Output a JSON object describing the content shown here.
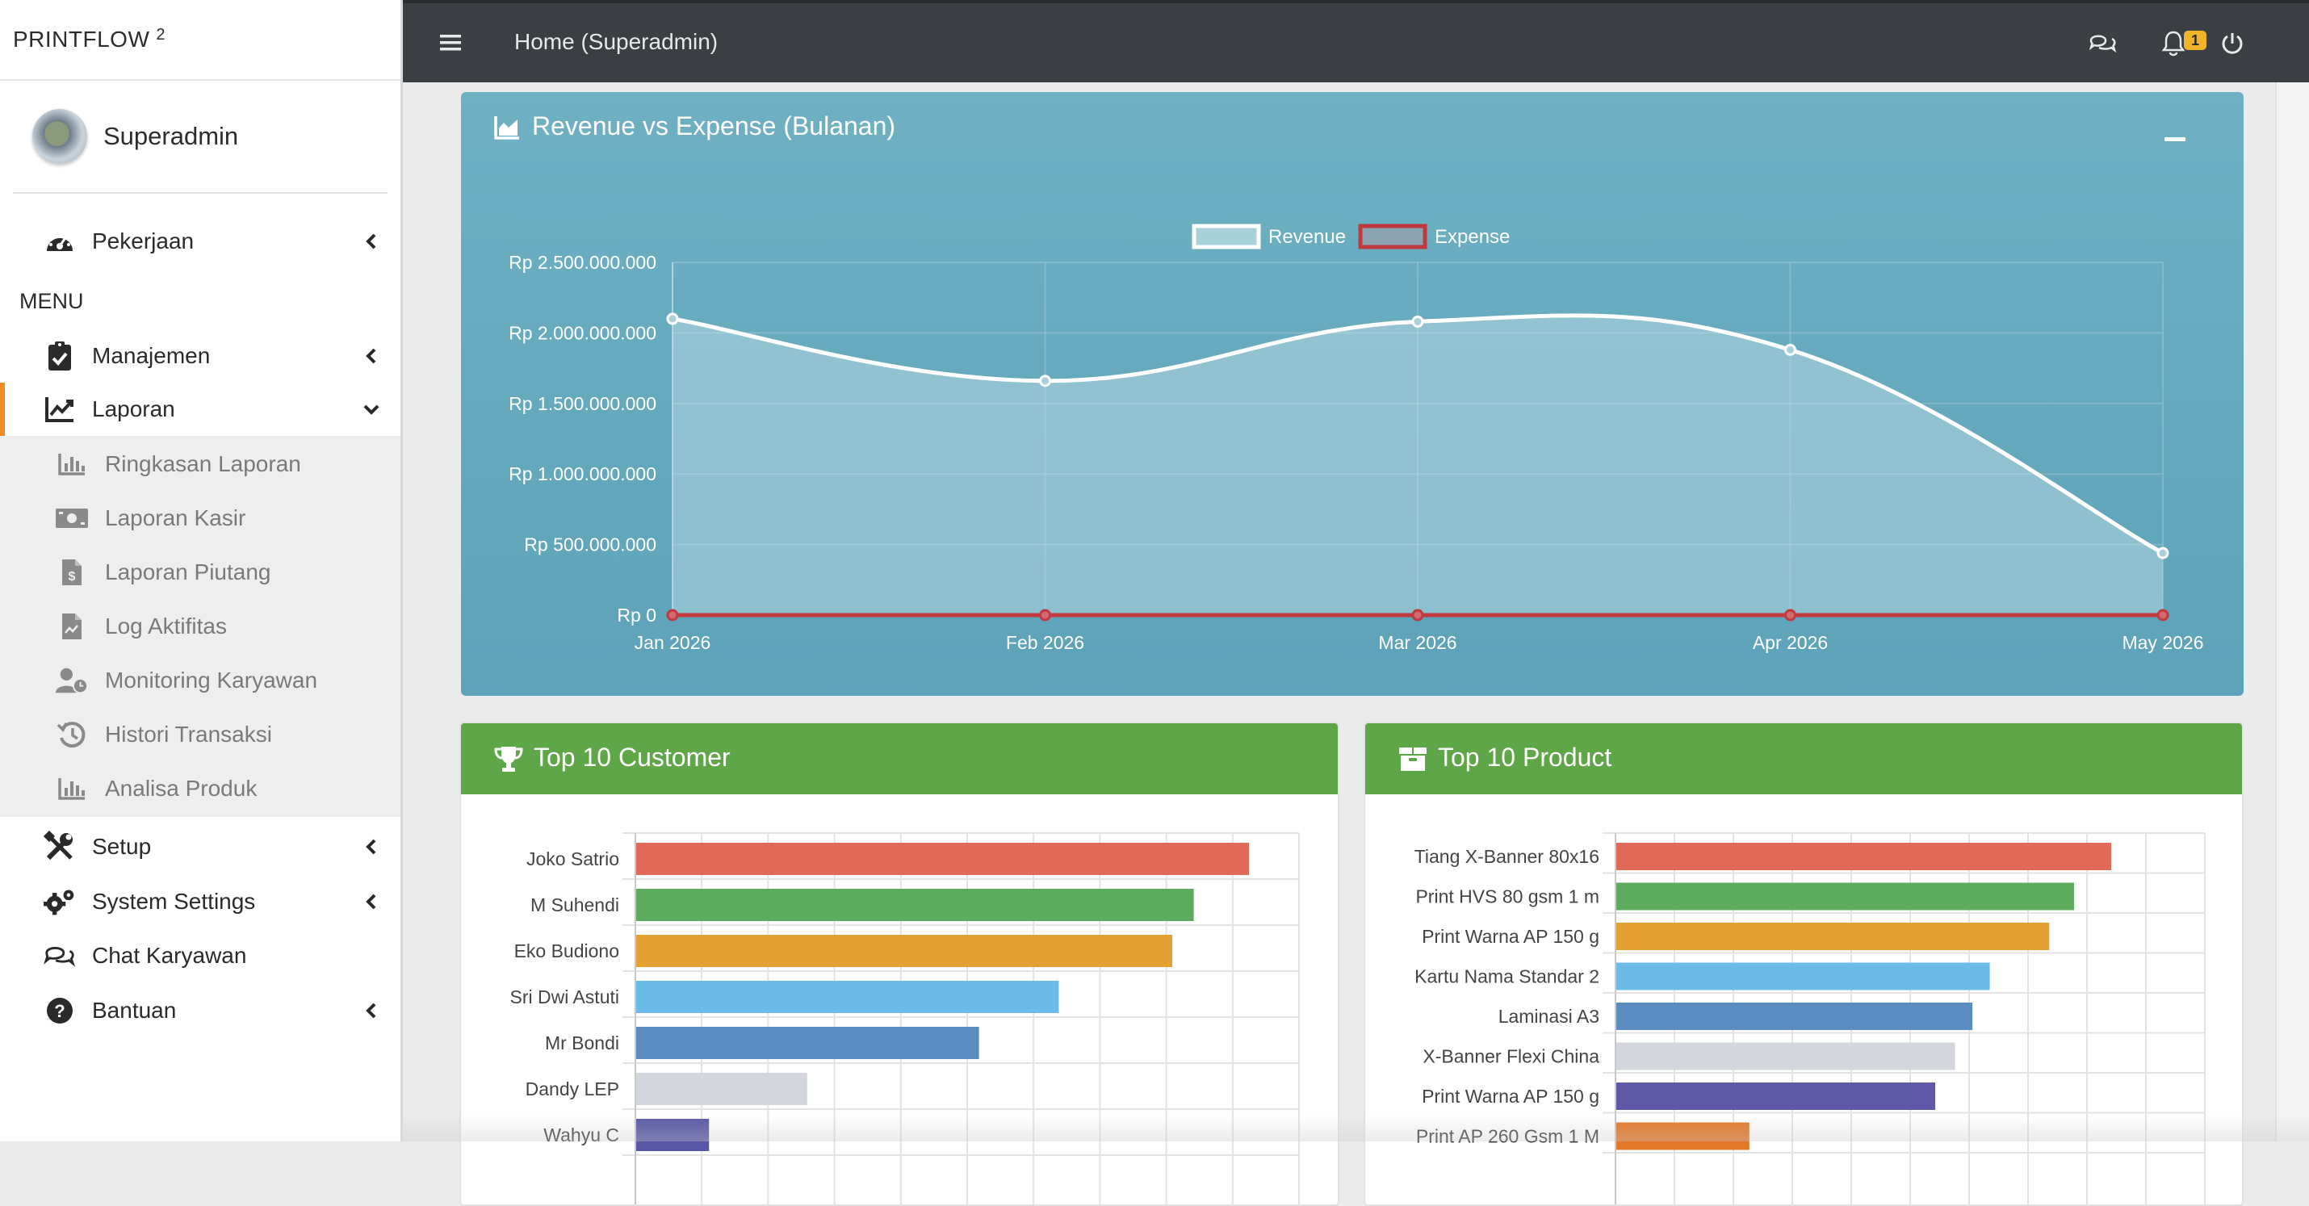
{
  "brand": {
    "name": "PRINTFLOW",
    "version": "2"
  },
  "user": {
    "name": "Superadmin"
  },
  "sidebar": {
    "top_items": [
      {
        "label": "Pekerjaan",
        "icon": "dashboard-gauge-icon"
      }
    ],
    "menu_header": "MENU",
    "items": [
      {
        "label": "Manajemen",
        "icon": "clipboard-check-icon"
      },
      {
        "label": "Laporan",
        "icon": "line-chart-icon",
        "expanded": true
      },
      {
        "label": "Setup",
        "icon": "tools-icon"
      },
      {
        "label": "System Settings",
        "icon": "gears-icon"
      },
      {
        "label": "Chat Karyawan",
        "icon": "chat-icon"
      },
      {
        "label": "Bantuan",
        "icon": "help-circle-icon"
      }
    ],
    "laporan_sub": [
      {
        "label": "Ringkasan Laporan",
        "icon": "bar-chart-icon"
      },
      {
        "label": "Laporan Kasir",
        "icon": "money-bill-icon"
      },
      {
        "label": "Laporan Piutang",
        "icon": "invoice-dollar-icon"
      },
      {
        "label": "Log Aktifitas",
        "icon": "file-chart-icon"
      },
      {
        "label": "Monitoring Karyawan",
        "icon": "user-clock-icon"
      },
      {
        "label": "Histori Transaksi",
        "icon": "history-icon"
      },
      {
        "label": "Analisa Produk",
        "icon": "bar-chart-icon"
      }
    ]
  },
  "topbar": {
    "title": "Home (Superadmin)",
    "notification_count": "1",
    "icons": [
      "hamburger-icon",
      "chat-icon",
      "bell-icon",
      "power-icon"
    ]
  },
  "revenue_panel": {
    "title": "Revenue vs Expense (Bulanan)",
    "color_fill": "#7fb9c9",
    "color_expense": "#c0393f"
  },
  "customer_panel": {
    "title": "Top 10 Customer"
  },
  "product_panel": {
    "title": "Top 10 Product"
  },
  "chart_data": [
    {
      "type": "line",
      "title": "Revenue vs Expense (Bulanan)",
      "x": [
        "Jan 2026",
        "Feb 2026",
        "Mar 2026",
        "Apr 2026",
        "May 2026"
      ],
      "ylim": [
        0,
        2500000000
      ],
      "yticks": [
        "Rp 0",
        "Rp 500.000.000",
        "Rp 1.000.000.000",
        "Rp 1.500.000.000",
        "Rp 2.000.000.000",
        "Rp 2.500.000.000"
      ],
      "series": [
        {
          "name": "Revenue",
          "values": [
            2100000000,
            1660000000,
            2080000000,
            1880000000,
            440000000
          ],
          "color": "#ffffff"
        },
        {
          "name": "Expense",
          "values": [
            0,
            0,
            0,
            0,
            0
          ],
          "color": "#c0393f"
        }
      ],
      "legend": "top-center",
      "grid": true
    },
    {
      "type": "bar",
      "orientation": "horizontal",
      "title": "Top 10 Customer",
      "categories": [
        "Joko Satrio",
        "M Suhendi",
        "Eko Budiono",
        "Sri Dwi Astuti",
        "Mr Bondi",
        "Dandy LEP",
        "Wahyu C"
      ],
      "values": [
        100,
        91,
        87.5,
        69,
        56,
        28,
        12
      ],
      "colors": [
        "#e06a57",
        "#5dab5d",
        "#e4a030",
        "#6bbbe9",
        "#5a8cc2",
        "#d4d6dd",
        "#5757a5"
      ],
      "grid": true
    },
    {
      "type": "bar",
      "orientation": "horizontal",
      "title": "Top 10 Product",
      "categories": [
        "Tiang X-Banner 80x16",
        "Print HVS 80 gsm 1 m",
        "Print Warna AP 150 g",
        "Kartu Nama Standar 2",
        "Laminasi A3",
        "X-Banner Flexi China",
        "Print Warna AP 150 g",
        "Print AP 260 Gsm 1 M"
      ],
      "values": [
        100,
        92.5,
        87.5,
        75.5,
        72,
        68.5,
        64.5,
        27
      ],
      "colors": [
        "#e06a57",
        "#5dab5d",
        "#e4a030",
        "#6bbbe9",
        "#5a8cc2",
        "#d4d6dd",
        "#5f59a8",
        "#e27928"
      ],
      "grid": true
    }
  ]
}
